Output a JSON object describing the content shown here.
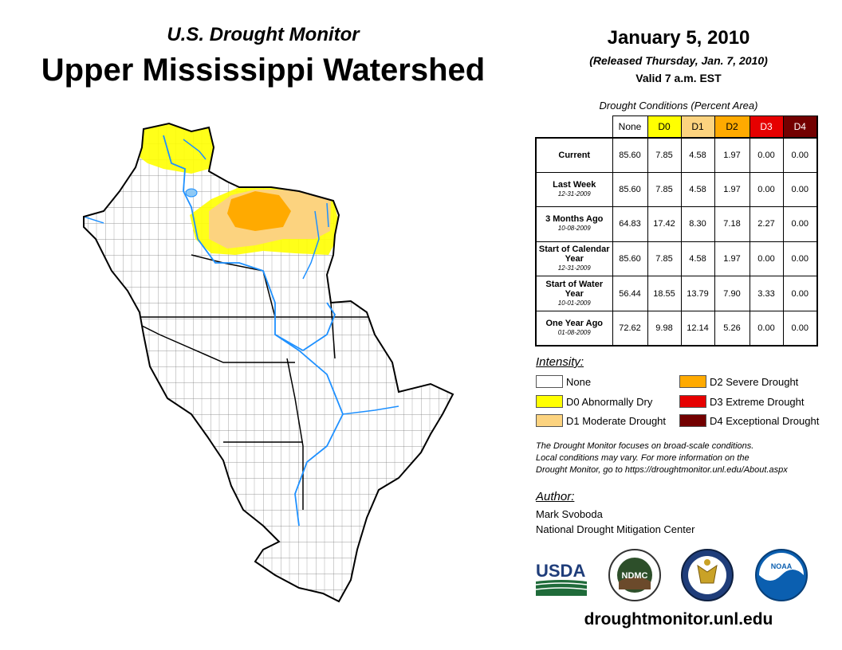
{
  "header": {
    "subtitle": "U.S. Drought Monitor",
    "title": "Upper Mississippi Watershed",
    "date": "January 5, 2010",
    "released": "(Released Thursday, Jan. 7, 2010)",
    "valid": "Valid 7 a.m. EST"
  },
  "table": {
    "title": "Drought Conditions (Percent Area)",
    "columns": [
      "None",
      "D0",
      "D1",
      "D2",
      "D3",
      "D4"
    ],
    "column_colors": [
      "#ffffff",
      "#ffff00",
      "#fcd37f",
      "#ffaa00",
      "#e60000",
      "#730000"
    ],
    "rows": [
      {
        "label": "Current",
        "date": "",
        "values": [
          "85.60",
          "7.85",
          "4.58",
          "1.97",
          "0.00",
          "0.00"
        ]
      },
      {
        "label": "Last Week",
        "date": "12-31-2009",
        "values": [
          "85.60",
          "7.85",
          "4.58",
          "1.97",
          "0.00",
          "0.00"
        ]
      },
      {
        "label": "3 Months Ago",
        "date": "10-08-2009",
        "values": [
          "64.83",
          "17.42",
          "8.30",
          "7.18",
          "2.27",
          "0.00"
        ]
      },
      {
        "label": "Start of Calendar Year",
        "date": "12-31-2009",
        "values": [
          "85.60",
          "7.85",
          "4.58",
          "1.97",
          "0.00",
          "0.00"
        ]
      },
      {
        "label": "Start of Water Year",
        "date": "10-01-2009",
        "values": [
          "56.44",
          "18.55",
          "13.79",
          "7.90",
          "3.33",
          "0.00"
        ]
      },
      {
        "label": "One Year Ago",
        "date": "01-08-2009",
        "values": [
          "72.62",
          "9.98",
          "12.14",
          "5.26",
          "0.00",
          "0.00"
        ]
      }
    ]
  },
  "legend": {
    "title": "Intensity:",
    "items": [
      {
        "label": "None",
        "color": "#ffffff"
      },
      {
        "label": "D0 Abnormally Dry",
        "color": "#ffff00"
      },
      {
        "label": "D1 Moderate Drought",
        "color": "#fcd37f"
      },
      {
        "label": "D2 Severe Drought",
        "color": "#ffaa00"
      },
      {
        "label": "D3 Extreme Drought",
        "color": "#e60000"
      },
      {
        "label": "D4 Exceptional Drought",
        "color": "#730000"
      }
    ]
  },
  "note": {
    "line1": "The Drought Monitor focuses on broad-scale conditions.",
    "line2": "Local conditions may vary. For more information on the",
    "line3": "Drought Monitor, go to https://droughtmonitor.unl.edu/About.aspx"
  },
  "author": {
    "heading": "Author:",
    "name": "Mark Svoboda",
    "org": "National Drought Mitigation Center"
  },
  "logos": {
    "usda": "USDA",
    "ndmc": "NDMC",
    "noaa": "NOAA"
  },
  "footer_url": "droughtmonitor.unl.edu"
}
